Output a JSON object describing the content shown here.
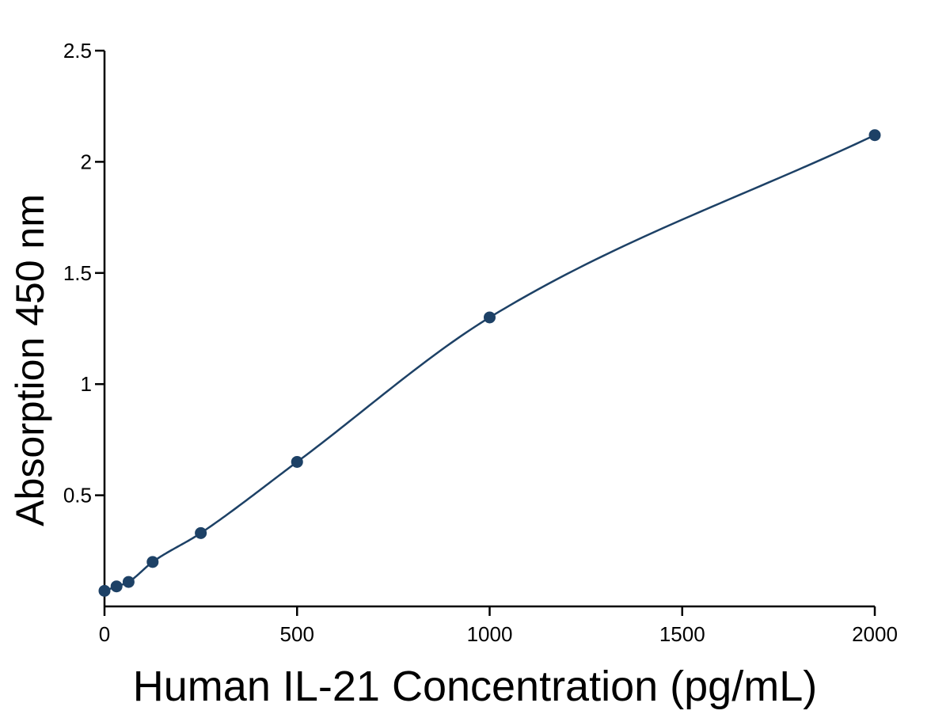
{
  "chart_data": {
    "type": "scatter",
    "xlabel": "Human IL-21 Concentration (pg/mL)",
    "ylabel": "Absorption 450 nm",
    "xlim": [
      0,
      2000
    ],
    "ylim": [
      0,
      2.5
    ],
    "x_ticks": [
      "0",
      "500",
      "1000",
      "1500",
      "2000"
    ],
    "y_ticks": [
      "0.5",
      "1",
      "1.5",
      "2",
      "2.5"
    ],
    "grid": false,
    "legend": "none",
    "fit_line": true,
    "color": "#1d4166",
    "series": [
      {
        "x": [
          0,
          31.25,
          62.5,
          125,
          250,
          500,
          1000,
          2000
        ],
        "y": [
          0.07,
          0.09,
          0.11,
          0.2,
          0.33,
          0.65,
          1.3,
          2.12
        ]
      }
    ]
  }
}
